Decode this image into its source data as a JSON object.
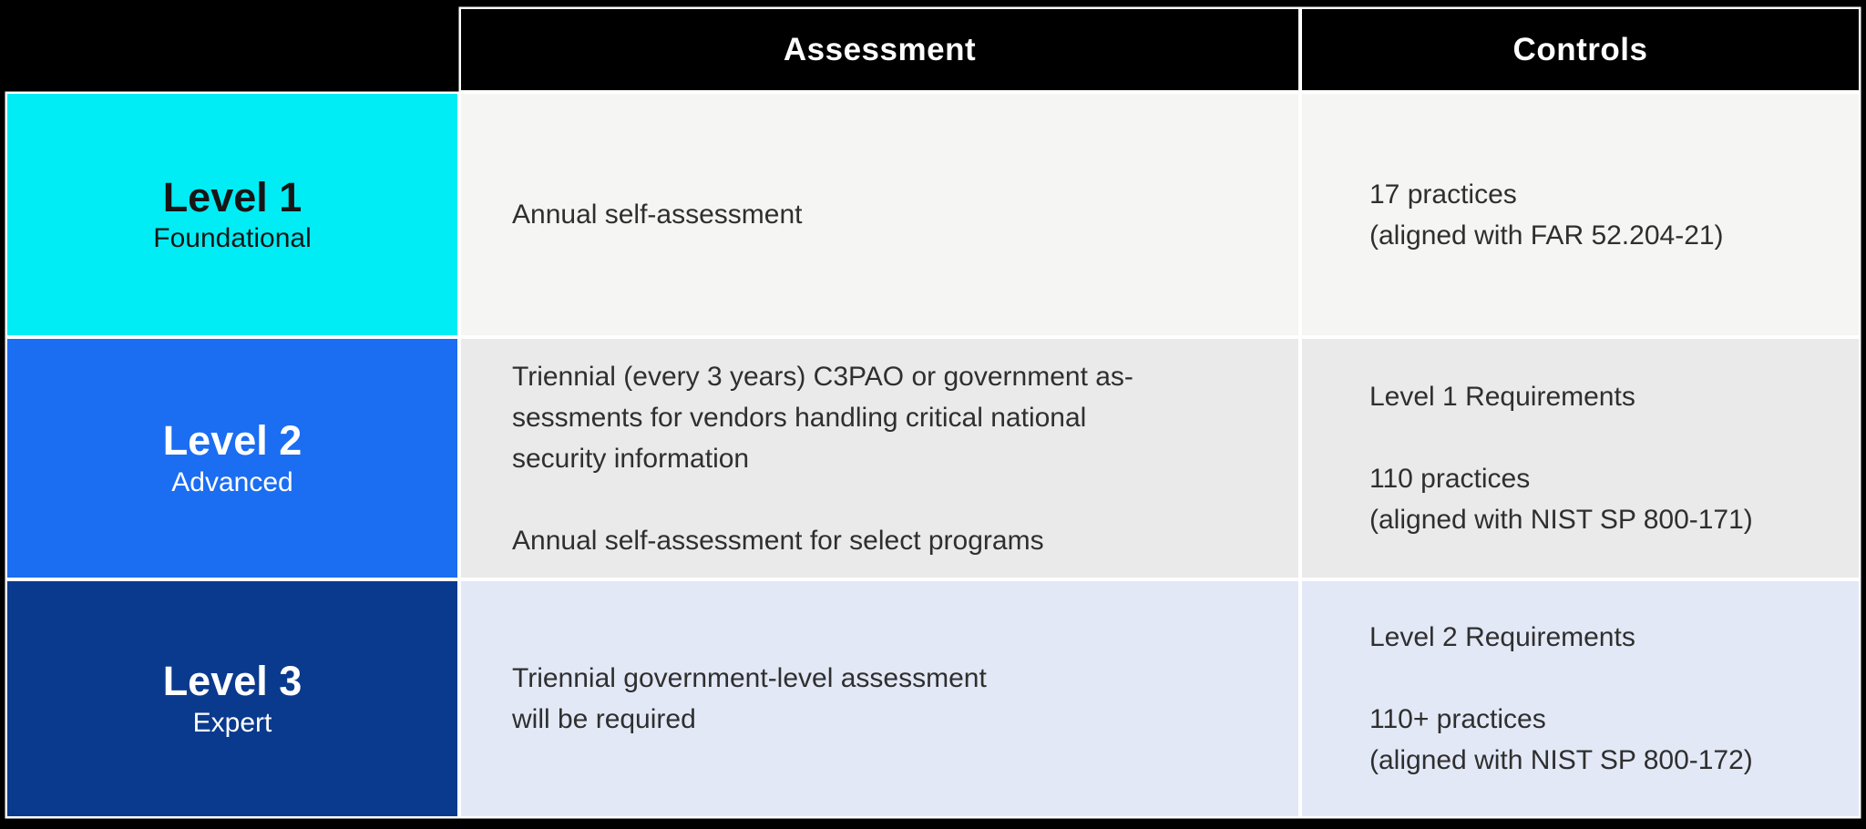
{
  "colors": {
    "page_bg": "#000000",
    "header_bg": "#000000",
    "header_text": "#FFFFFF",
    "cell_border": "#FFFFFF",
    "body_text": "#2F2F2F"
  },
  "header": {
    "assessment": "Assessment",
    "controls": "Controls"
  },
  "rows": [
    {
      "level": "Level 1",
      "tier": "Foundational",
      "level_bg": "#00EDF5",
      "level_text": "#161616",
      "content_bg": "#F5F5F3",
      "assessment": "Annual self-assessment",
      "controls": "17 practices\n(aligned with FAR 52.204-21)"
    },
    {
      "level": "Level 2",
      "tier": "Advanced",
      "level_bg": "#1B6DF2",
      "level_text": "#FFFFFF",
      "content_bg": "#EAEAEB",
      "assessment": "Triennial (every 3 years) C3PAO or government as-\nsessments for vendors handling critical national\nsecurity information\n\nAnnual self-assessment for select programs",
      "controls": "Level 1 Requirements\n\n110 practices\n(aligned with NIST SP 800-171)"
    },
    {
      "level": "Level 3",
      "tier": "Expert",
      "level_bg": "#0A3A8E",
      "level_text": "#FFFFFF",
      "content_bg": "#E2E8F6",
      "assessment": "Triennial government-level assessment\nwill be required",
      "controls": "Level 2 Requirements\n\n110+ practices\n(aligned with NIST SP 800-172)"
    }
  ]
}
